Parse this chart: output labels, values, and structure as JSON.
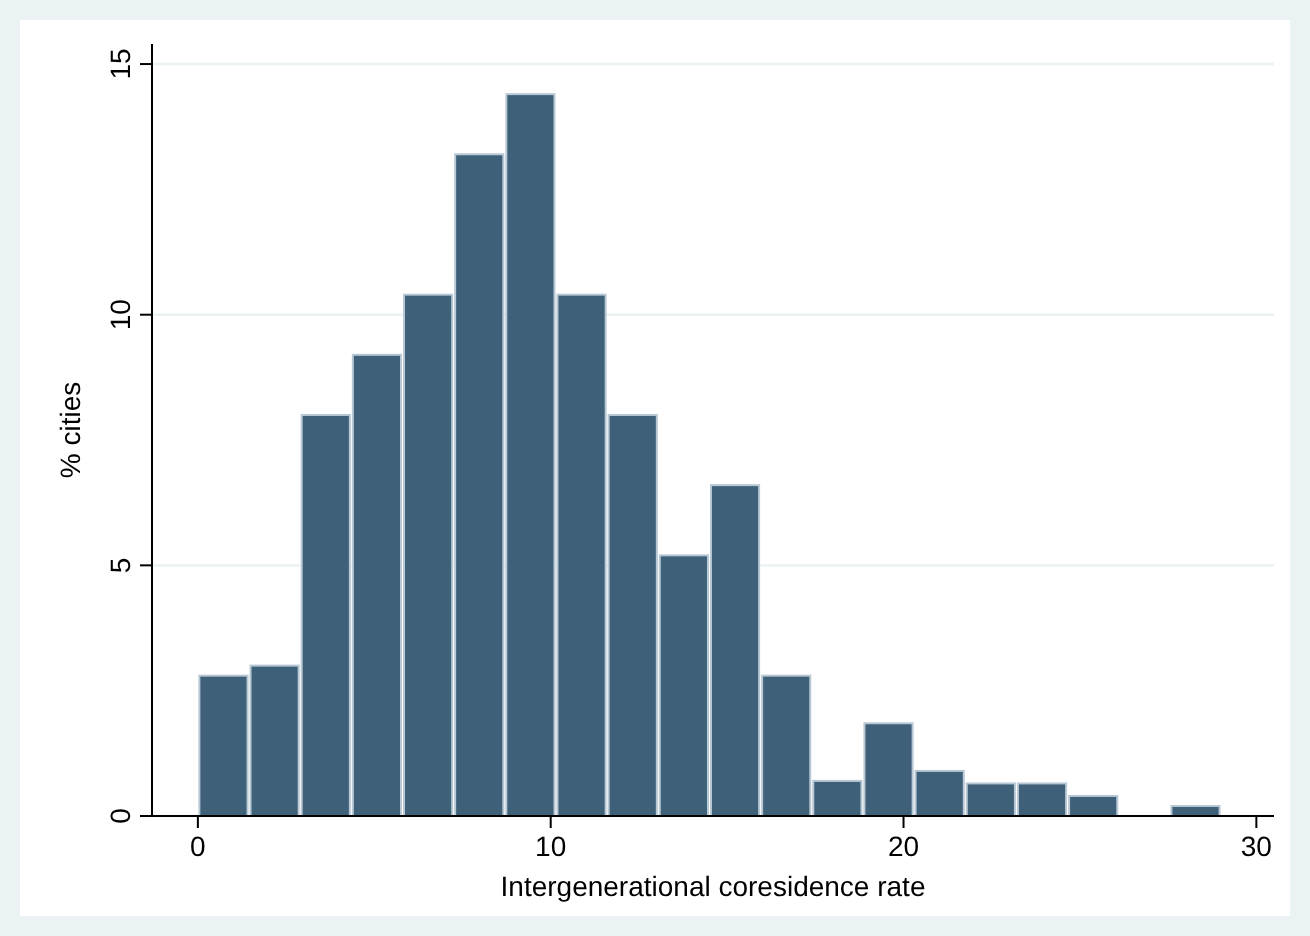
{
  "chart_data": {
    "type": "histogram",
    "xlabel": "Intergenerational coresidence rate",
    "ylabel": "% cities",
    "color": "#3e6079",
    "bins": [
      0,
      1.45,
      2.9,
      4.35,
      5.8,
      7.25,
      8.7,
      10.15,
      11.6,
      13.05,
      14.5,
      15.95,
      17.4,
      18.85,
      20.3,
      21.75,
      23.2,
      24.65,
      26.1,
      27.55,
      29
    ],
    "values": [
      2.8,
      3.0,
      8.0,
      9.2,
      10.4,
      13.2,
      14.4,
      10.4,
      8.0,
      5.2,
      6.6,
      2.8,
      0.7,
      1.85,
      0.9,
      0.65,
      0.65,
      0.4,
      0,
      0.2
    ],
    "xlim": [
      -1.3,
      30.5
    ],
    "xticks": [
      0,
      10,
      20,
      30
    ],
    "ylim": [
      0,
      15.4
    ],
    "yticks": [
      0,
      5,
      10,
      15
    ],
    "grid": "y"
  }
}
